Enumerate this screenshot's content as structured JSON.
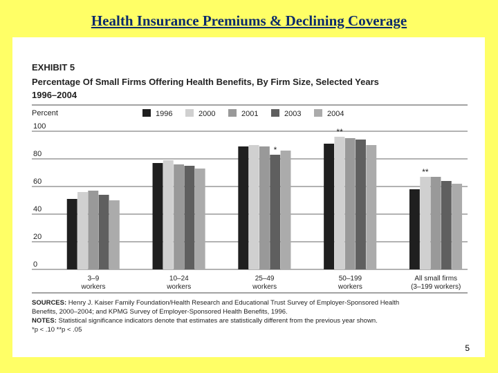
{
  "slide": {
    "title": "Health Insurance Premiums & Declining Coverage",
    "page_number": "5"
  },
  "exhibit": {
    "label": "EXHIBIT 5",
    "title_line1": "Percentage Of Small Firms Offering Health Benefits, By Firm Size, Selected Years",
    "title_line2": "1996–2004"
  },
  "chart_data": {
    "type": "bar",
    "ylabel": "Percent",
    "ylim": [
      0,
      100
    ],
    "yticks": [
      0,
      20,
      40,
      60,
      80,
      100
    ],
    "legend_placement": "top",
    "categories": [
      [
        "3–9",
        "workers"
      ],
      [
        "10–24",
        "workers"
      ],
      [
        "25–49",
        "workers"
      ],
      [
        "50–199",
        "workers"
      ],
      [
        "All small firms",
        "(3–199 workers)"
      ]
    ],
    "series": [
      {
        "name": "1996",
        "color": "#1f1f1f",
        "values": [
          51,
          77,
          89,
          91,
          58
        ]
      },
      {
        "name": "2000",
        "color": "#d0d0d0",
        "values": [
          56,
          79,
          90,
          96,
          67
        ]
      },
      {
        "name": "2001",
        "color": "#999999",
        "values": [
          57,
          76,
          89,
          95,
          67
        ]
      },
      {
        "name": "2003",
        "color": "#5f5f5f",
        "values": [
          54,
          75,
          83,
          94,
          64
        ]
      },
      {
        "name": "2004",
        "color": "#ababab",
        "values": [
          50,
          73,
          86,
          90,
          62
        ]
      }
    ],
    "annotations": [
      {
        "category_index": 2,
        "series_index": 3,
        "text": "*"
      },
      {
        "category_index": 3,
        "series_index": 1,
        "text": "**"
      },
      {
        "category_index": 4,
        "series_index": 1,
        "text": "**"
      }
    ]
  },
  "notes": {
    "sources_label": "SOURCES:",
    "sources_line1": " Henry J. Kaiser Family Foundation/Health Research and Educational Trust Survey of Employer-Sponsored Health",
    "sources_line2": "Benefits, 2000–2004; and KPMG Survey of Employer-Sponsored Health Benefits, 1996.",
    "notes_label": "NOTES:",
    "notes_text": " Statistical significance indicators denote that estimates are statistically different from the previous year shown.",
    "significance": "*p < .10  **p < .05"
  }
}
